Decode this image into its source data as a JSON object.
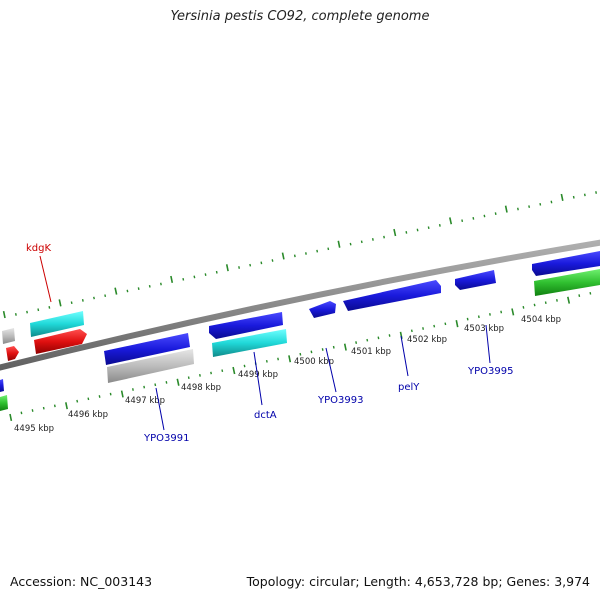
{
  "title": "Yersinia pestis CO92, complete genome",
  "footer": {
    "accession": "Accession: NC_003143",
    "stats": "Topology: circular; Length: 4,653,728 bp; Genes: 3,974"
  },
  "colors": {
    "backbone": "#8a8a8a",
    "tick": "#2a8a2a",
    "gene_blue": "#1a1adc",
    "gene_cyan": "#20c8c8",
    "gene_red": "#e01010",
    "gene_gray": "#b8b8b8",
    "gene_green": "#30c030",
    "label_red": "#cc0000",
    "label_blue": "#0000aa"
  },
  "ruler_labels": [
    "4495 kbp",
    "4496 kbp",
    "4497 kbp",
    "4498 kbp",
    "4499 kbp",
    "4500 kbp",
    "4501 kbp",
    "4502 kbp",
    "4503 kbp",
    "4504 kbp"
  ],
  "gene_labels": {
    "kdgK": "kdgK",
    "YPO3991": "YPO3991",
    "dctA": "dctA",
    "YPO3993": "YPO3993",
    "pelY": "pelY",
    "YPO3995": "YPO3995"
  }
}
